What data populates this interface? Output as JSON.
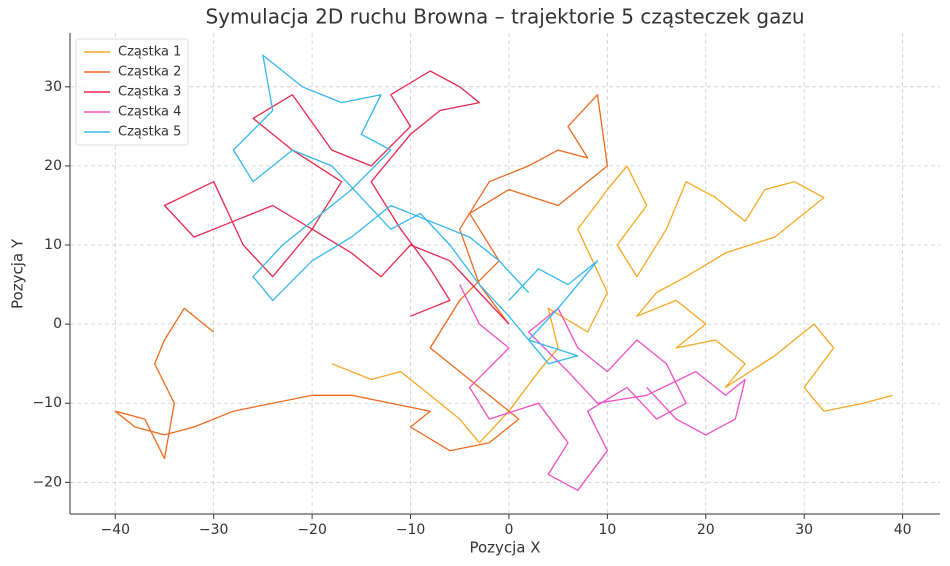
{
  "chart_data": {
    "type": "line",
    "title": "Symulacja 2D ruchu Browna – trajektorie 5 cząsteczek gazu",
    "x_label": "Pozycja X",
    "y_label": "Pozycja Y",
    "xlim": [
      -44.6,
      43.8
    ],
    "ylim": [
      -24,
      36.8
    ],
    "xticks": [
      {
        "value": -40,
        "label": "−40"
      },
      {
        "value": -30,
        "label": "−30"
      },
      {
        "value": -20,
        "label": "−20"
      },
      {
        "value": -10,
        "label": "−10"
      },
      0,
      10,
      20,
      30,
      40
    ],
    "yticks": [
      {
        "value": -20,
        "label": "−20"
      },
      {
        "value": -10,
        "label": "−10"
      },
      0,
      10,
      20,
      30
    ],
    "grid": true,
    "legend": "upper-left",
    "series": [
      {
        "name": "Cząstka 1",
        "color": "#f7a823",
        "x": [
          -18,
          -14,
          -11,
          -8,
          -5,
          -3,
          0,
          3,
          5,
          4,
          8,
          10,
          7,
          10,
          12,
          14,
          11,
          13,
          16,
          18,
          21,
          24,
          26,
          29,
          32,
          27,
          22,
          18,
          15,
          13,
          17,
          20,
          17,
          21,
          24,
          22,
          27,
          31,
          33,
          30,
          32,
          36,
          39
        ],
        "values": [
          -5,
          -7,
          -6,
          -9,
          -12,
          -15,
          -11,
          -6,
          -3,
          2,
          -1,
          4,
          12,
          17,
          20,
          15,
          10,
          6,
          12,
          18,
          16,
          13,
          17,
          18,
          16,
          11,
          9,
          6,
          4,
          1,
          3,
          0,
          -3,
          -2,
          -5,
          -8,
          -4,
          0,
          -3,
          -8,
          -11,
          -10,
          -9
        ]
      },
      {
        "name": "Cząstka 2",
        "color": "#ef6a1f",
        "x": [
          0,
          -3,
          -5,
          -2,
          2,
          5,
          8,
          6,
          9,
          10,
          5,
          0,
          -4,
          -1,
          -5,
          -8,
          -3,
          1,
          -2,
          -6,
          -10,
          -8,
          -12,
          -16,
          -20,
          -24,
          -28,
          -32,
          -35,
          -38,
          -40,
          -37,
          -35,
          -34,
          -36,
          -35,
          -33,
          -31,
          -30
        ],
        "values": [
          0,
          5,
          12,
          18,
          20,
          22,
          21,
          25,
          29,
          20,
          15,
          17,
          14,
          8,
          3,
          -3,
          -8,
          -12,
          -15,
          -16,
          -13,
          -11,
          -10,
          -9,
          -9,
          -10,
          -11,
          -13,
          -14,
          -13,
          -11,
          -12,
          -17,
          -10,
          -5,
          -2,
          2,
          0,
          -1
        ]
      },
      {
        "name": "Cząstka 3",
        "color": "#e8294f",
        "x": [
          0,
          -3,
          -6,
          -10,
          -13,
          -16,
          -20,
          -24,
          -28,
          -32,
          -35,
          -30,
          -27,
          -24,
          -20,
          -17,
          -22,
          -26,
          -22,
          -18,
          -14,
          -10,
          -12,
          -8,
          -5,
          -3,
          -7,
          -10,
          -14,
          -11,
          -8,
          -6,
          -10
        ],
        "values": [
          0,
          4,
          8,
          10,
          6,
          9,
          12,
          15,
          13,
          11,
          15,
          18,
          10,
          6,
          12,
          18,
          22,
          26,
          29,
          22,
          20,
          25,
          29,
          32,
          30,
          28,
          27,
          24,
          18,
          12,
          7,
          3,
          1
        ]
      },
      {
        "name": "Cząstka 4",
        "color": "#f050c0",
        "x": [
          -5,
          -3,
          0,
          -4,
          -2,
          3,
          6,
          4,
          7,
          10,
          8,
          12,
          15,
          18,
          16,
          13,
          10,
          7,
          5,
          2,
          6,
          9,
          14,
          19,
          22,
          24,
          23,
          20,
          17,
          14
        ],
        "values": [
          5,
          0,
          -3,
          -8,
          -12,
          -10,
          -15,
          -19,
          -21,
          -16,
          -11,
          -8,
          -12,
          -10,
          -5,
          -2,
          -6,
          -3,
          2,
          -1,
          -6,
          -10,
          -9,
          -6,
          -9,
          -7,
          -12,
          -14,
          -12,
          -8
        ]
      },
      {
        "name": "Cząstka 5",
        "color": "#34b8ee",
        "x": [
          0,
          3,
          6,
          9,
          5,
          2,
          7,
          4,
          0,
          -3,
          -6,
          -9,
          -12,
          -15,
          -18,
          -22,
          -26,
          -28,
          -24,
          -25,
          -21,
          -17,
          -13,
          -15,
          -12,
          -16,
          -19,
          -23,
          -26,
          -24,
          -20,
          -16,
          -12,
          -8,
          -4,
          -1,
          2
        ],
        "values": [
          3,
          7,
          5,
          8,
          2,
          -2,
          -4,
          -5,
          1,
          5,
          10,
          14,
          12,
          16,
          20,
          22,
          18,
          22,
          27,
          34,
          30,
          28,
          29,
          24,
          22,
          17,
          14,
          10,
          6,
          3,
          8,
          11,
          15,
          13,
          11,
          8,
          4
        ]
      }
    ]
  }
}
